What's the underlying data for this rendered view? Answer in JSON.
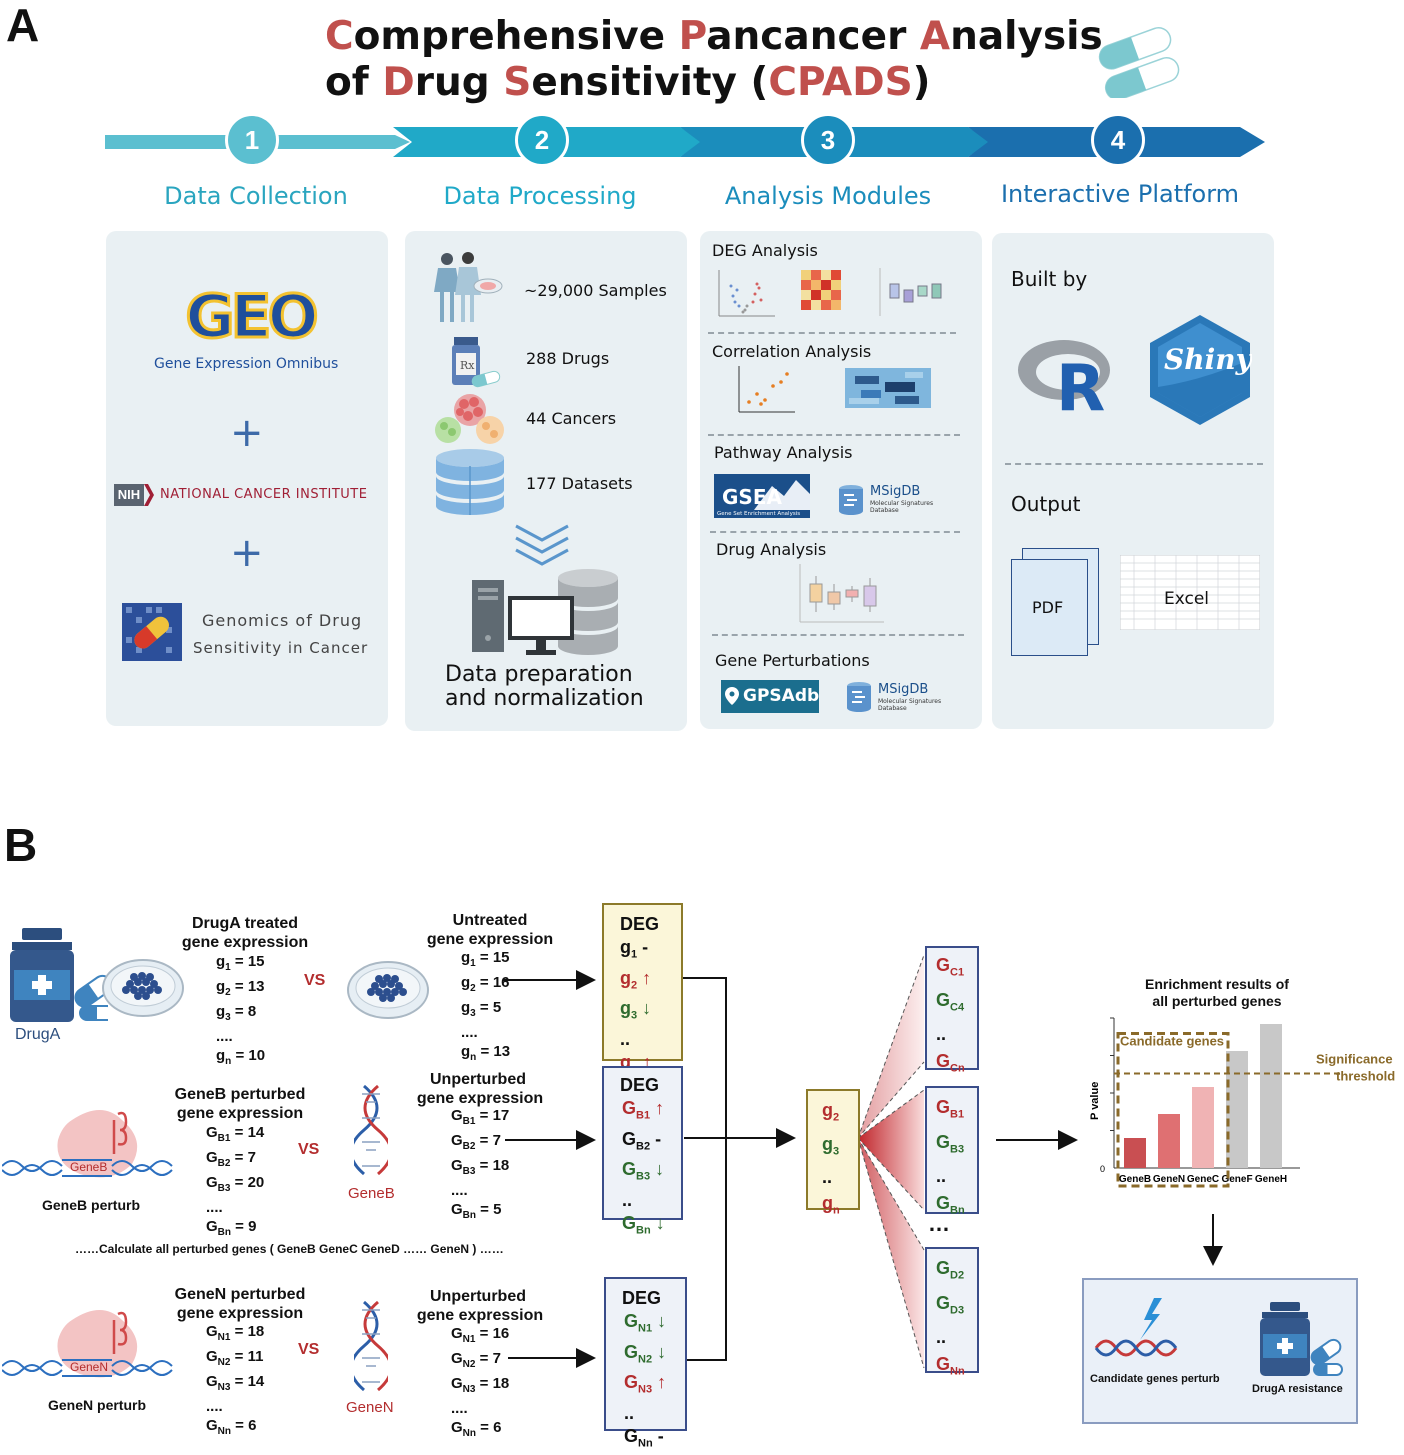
{
  "panel_a": {
    "letter": "A",
    "title_line1": [
      {
        "t": "C",
        "hl": true
      },
      {
        "t": "omprehensive ",
        "hl": false
      },
      {
        "t": "P",
        "hl": true
      },
      {
        "t": "ancancer ",
        "hl": false
      },
      {
        "t": "A",
        "hl": true
      },
      {
        "t": "nalysis",
        "hl": false
      }
    ],
    "title_line2": [
      {
        "t": "of ",
        "hl": false
      },
      {
        "t": "D",
        "hl": true
      },
      {
        "t": "rug ",
        "hl": false
      },
      {
        "t": "S",
        "hl": true
      },
      {
        "t": "ensitivity (",
        "hl": false
      },
      {
        "t": "CPADS",
        "hl": true
      },
      {
        "t": ")",
        "hl": false
      }
    ],
    "steps": [
      {
        "num": "1",
        "label": "Data Collection",
        "color": "#5bbfd0"
      },
      {
        "num": "2",
        "label": "Data Processing",
        "color": "#20a9c8"
      },
      {
        "num": "3",
        "label": "Analysis Modules",
        "color": "#1b8dbc"
      },
      {
        "num": "4",
        "label": "Interactive Platform",
        "color": "#1b6fae"
      }
    ],
    "collection": {
      "geo_logo": "GEO",
      "geo_sub": "Gene Expression Omnibus",
      "plus": "+",
      "nih_badge": "NIH",
      "nci": "NATIONAL CANCER INSTITUTE",
      "gdsc_line1": "Genomics of Drug",
      "gdsc_line2": "Sensitivity in Cancer"
    },
    "processing": {
      "items": [
        "~29,000 Samples",
        "288 Drugs",
        "44 Cancers",
        "177 Datasets"
      ],
      "rx": "Rx",
      "result_line1": "Data preparation",
      "result_line2": "and normalization"
    },
    "modules": {
      "deg": "DEG Analysis",
      "corr": "Correlation Analysis",
      "pathway": "Pathway Analysis",
      "gsea_logo": "GSEA",
      "gsea_sub": "Gene Set Enrichment Analysis",
      "msigdb": "MSigDB",
      "msigdb_sub1": "Molecular Signatures",
      "msigdb_sub2": "Database",
      "drug": "Drug Analysis",
      "perturb": "Gene Perturbations",
      "gpsadb": "GPSAdb"
    },
    "platform": {
      "built_by": "Built by",
      "r_logo": "R",
      "shiny": "Shiny",
      "output": "Output",
      "pdf": "PDF",
      "excel": "Excel"
    },
    "colors": {
      "accent_red": "#c0504d",
      "panel_bg": "#e9f0f3",
      "step_text": "#1a9bb8"
    }
  },
  "panel_b": {
    "letter": "B",
    "druga_title1": "DrugA treated",
    "druga_title2": "gene expression",
    "druga_label": "DrugA",
    "druga_vals": [
      {
        "g": "g",
        "s": "1",
        "v": " = 15"
      },
      {
        "g": "g",
        "s": "2",
        "v": " = 13"
      },
      {
        "g": "g",
        "s": "3",
        "v": " = 8"
      },
      {
        "g": "....",
        "s": "",
        "v": ""
      },
      {
        "g": "g",
        "s": "n",
        "v": " = 10"
      }
    ],
    "vs": "VS",
    "untreated_title1": "Untreated",
    "untreated_title2": "gene expression",
    "untreated_vals": [
      {
        "g": "g",
        "s": "1",
        "v": " = 15"
      },
      {
        "g": "g",
        "s": "2",
        "v": " = 16"
      },
      {
        "g": "g",
        "s": "3",
        "v": " = 5"
      },
      {
        "g": "....",
        "s": "",
        "v": ""
      },
      {
        "g": "g",
        "s": "n",
        "v": " = 13"
      }
    ],
    "deg_title": "DEG",
    "deg1": [
      {
        "g": "g",
        "s": "1",
        "m": "-",
        "c": "black"
      },
      {
        "g": "g",
        "s": "2",
        "m": "↑",
        "c": "red"
      },
      {
        "g": "g",
        "s": "3",
        "m": "↓",
        "c": "green"
      },
      {
        "g": "..",
        "s": "",
        "m": "",
        "c": "black"
      },
      {
        "g": "g",
        "s": "n",
        "m": "↑",
        "c": "red"
      }
    ],
    "geneb_title1": "GeneB perturbed",
    "geneb_title2": "gene expression",
    "geneb_gene": "GeneB",
    "geneb_perturb": "GeneB perturb",
    "geneb_vals": [
      {
        "g": "G",
        "s": "B1",
        "v": " = 14"
      },
      {
        "g": "G",
        "s": "B2",
        "v": " = 7"
      },
      {
        "g": "G",
        "s": "B3",
        "v": " = 20"
      },
      {
        "g": "....",
        "s": "",
        "v": ""
      },
      {
        "g": "G",
        "s": "Bn",
        "v": " = 9"
      }
    ],
    "unpert_title1": "Unperturbed",
    "unpert_title2": "gene expression",
    "unpertb_vals": [
      {
        "g": "G",
        "s": "B1",
        "v": " = 17"
      },
      {
        "g": "G",
        "s": "B2",
        "v": " = 7"
      },
      {
        "g": "G",
        "s": "B3",
        "v": " = 18"
      },
      {
        "g": "....",
        "s": "",
        "v": ""
      },
      {
        "g": "G",
        "s": "Bn",
        "v": " = 5"
      }
    ],
    "deg2": [
      {
        "g": "G",
        "s": "B1",
        "m": "↑",
        "c": "red"
      },
      {
        "g": "G",
        "s": "B2",
        "m": "-",
        "c": "black"
      },
      {
        "g": "G",
        "s": "B3",
        "m": "↓",
        "c": "green"
      },
      {
        "g": "..",
        "s": "",
        "m": "",
        "c": "black"
      },
      {
        "g": "G",
        "s": "Bn",
        "m": "↓",
        "c": "green"
      }
    ],
    "calc_note": "……Calculate all perturbed genes ( GeneB GeneC GeneD …… GeneN ) ……",
    "genen_title1": "GeneN perturbed",
    "genen_title2": "gene expression",
    "genen_gene": "GeneN",
    "genen_perturb": "GeneN perturb",
    "genen_vals": [
      {
        "g": "G",
        "s": "N1",
        "v": " = 18"
      },
      {
        "g": "G",
        "s": "N2",
        "v": " = 11"
      },
      {
        "g": "G",
        "s": "N3",
        "v": " = 14"
      },
      {
        "g": "....",
        "s": "",
        "v": ""
      },
      {
        "g": "G",
        "s": "Nn",
        "v": " = 6"
      }
    ],
    "unpertn_vals": [
      {
        "g": "G",
        "s": "N1",
        "v": " = 16"
      },
      {
        "g": "G",
        "s": "N2",
        "v": " = 7"
      },
      {
        "g": "G",
        "s": "N3",
        "v": " = 18"
      },
      {
        "g": "....",
        "s": "",
        "v": ""
      },
      {
        "g": "G",
        "s": "Nn",
        "v": " = 6"
      }
    ],
    "deg3": [
      {
        "g": "G",
        "s": "N1",
        "m": "↓",
        "c": "green"
      },
      {
        "g": "G",
        "s": "N2",
        "m": "↓",
        "c": "green"
      },
      {
        "g": "G",
        "s": "N3",
        "m": "↑",
        "c": "red"
      },
      {
        "g": "..",
        "s": "",
        "m": "",
        "c": "black"
      },
      {
        "g": "G",
        "s": "Nn",
        "m": "-",
        "c": "black"
      }
    ],
    "signature": [
      {
        "g": "g",
        "s": "2",
        "c": "red"
      },
      {
        "g": "g",
        "s": "3",
        "c": "green"
      },
      {
        "g": "..",
        "s": "",
        "c": "black"
      },
      {
        "g": "g",
        "s": "n",
        "c": "red"
      }
    ],
    "sets": [
      [
        {
          "g": "G",
          "s": "C1",
          "c": "red"
        },
        {
          "g": "G",
          "s": "C4",
          "c": "green"
        },
        {
          "g": "..",
          "s": "",
          "c": "black"
        },
        {
          "g": "G",
          "s": "Cn",
          "c": "red"
        }
      ],
      [
        {
          "g": "G",
          "s": "B1",
          "c": "red"
        },
        {
          "g": "G",
          "s": "B3",
          "c": "green"
        },
        {
          "g": "..",
          "s": "",
          "c": "black"
        },
        {
          "g": "G",
          "s": "Bn",
          "c": "green"
        }
      ],
      [
        {
          "g": "G",
          "s": "D2",
          "c": "green"
        },
        {
          "g": "G",
          "s": "D3",
          "c": "green"
        },
        {
          "g": "..",
          "s": "",
          "c": "black"
        },
        {
          "g": "G",
          "s": "Nn",
          "c": "red"
        }
      ]
    ],
    "sets_ellipsis": "…",
    "enrich_title1": "Enrichment results of",
    "enrich_title2": "all perturbed genes",
    "candidate_label": "Candidate genes",
    "threshold_label1": "Significance",
    "threshold_label2": "threshold",
    "ylabel": "P value",
    "y_zero": "0",
    "final_left": "Candidate genes perturb",
    "final_right": "DrugA resistance"
  },
  "chart_data": {
    "type": "bar",
    "title": "Enrichment results of all perturbed genes",
    "categories": [
      "GeneB",
      "GeneN",
      "GeneC",
      "GeneF",
      "GeneH"
    ],
    "values": [
      0.2,
      0.36,
      0.54,
      0.78,
      0.96
    ],
    "colors": [
      "#c94f52",
      "#df7072",
      "#f0b3b4",
      "#c8c8c8",
      "#c8c8c8"
    ],
    "threshold": 0.63,
    "ylabel": "P value",
    "ylim": [
      0,
      1
    ]
  }
}
